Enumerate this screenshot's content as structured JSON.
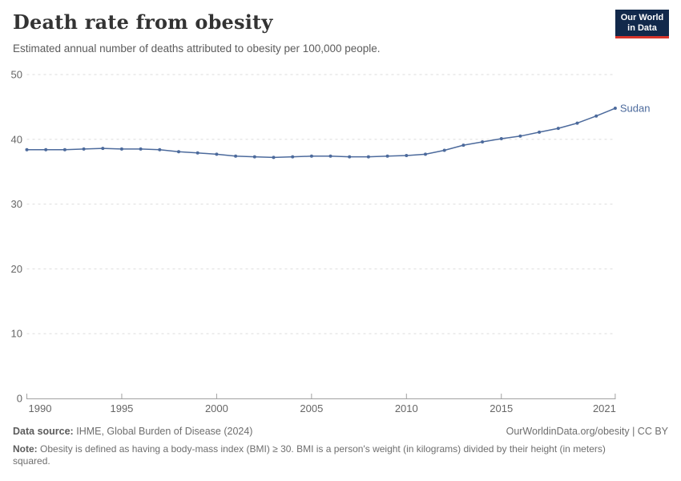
{
  "header": {
    "title": "Death rate from obesity",
    "subtitle": "Estimated annual number of deaths attributed to obesity per 100,000 people.",
    "logo_line1": "Our World",
    "logo_line2": "in Data"
  },
  "chart_data": {
    "type": "line",
    "title": "Death rate from obesity",
    "x": [
      1990,
      1991,
      1992,
      1993,
      1994,
      1995,
      1996,
      1997,
      1998,
      1999,
      2000,
      2001,
      2002,
      2003,
      2004,
      2005,
      2006,
      2007,
      2008,
      2009,
      2010,
      2011,
      2012,
      2013,
      2014,
      2015,
      2016,
      2017,
      2018,
      2019,
      2020,
      2021
    ],
    "series": [
      {
        "name": "Sudan",
        "color": "#4C6A9C",
        "values": [
          38.4,
          38.4,
          38.4,
          38.5,
          38.6,
          38.5,
          38.5,
          38.4,
          38.1,
          37.9,
          37.7,
          37.4,
          37.3,
          37.2,
          37.3,
          37.4,
          37.4,
          37.3,
          37.3,
          37.4,
          37.5,
          37.7,
          38.3,
          39.1,
          39.6,
          40.1,
          40.5,
          41.1,
          41.7,
          42.5,
          43.6,
          44.8
        ]
      }
    ],
    "xlabel": "",
    "ylabel": "",
    "xlim": [
      1990,
      2021
    ],
    "ylim": [
      0,
      50
    ],
    "x_ticks": [
      1990,
      1995,
      2000,
      2005,
      2010,
      2015,
      2021
    ],
    "y_ticks": [
      0,
      10,
      20,
      30,
      40,
      50
    ],
    "grid": "horizontal-dashed",
    "legend_position": "end-of-line-label"
  },
  "footer": {
    "data_source_label": "Data source:",
    "data_source": "IHME, Global Burden of Disease (2024)",
    "attribution": "OurWorldinData.org/obesity | CC BY",
    "note_label": "Note:",
    "note": "Obesity is defined as having a body-mass index (BMI) ≥ 30. BMI is a person's weight (in kilograms) divided by their height (in meters) squared."
  },
  "colors": {
    "line": "#4C6A9C",
    "logo_bg": "#12294b",
    "logo_red": "#d8352b",
    "gridline": "#dddddd",
    "axis": "#a1a1a1",
    "tick_label": "#666666"
  }
}
